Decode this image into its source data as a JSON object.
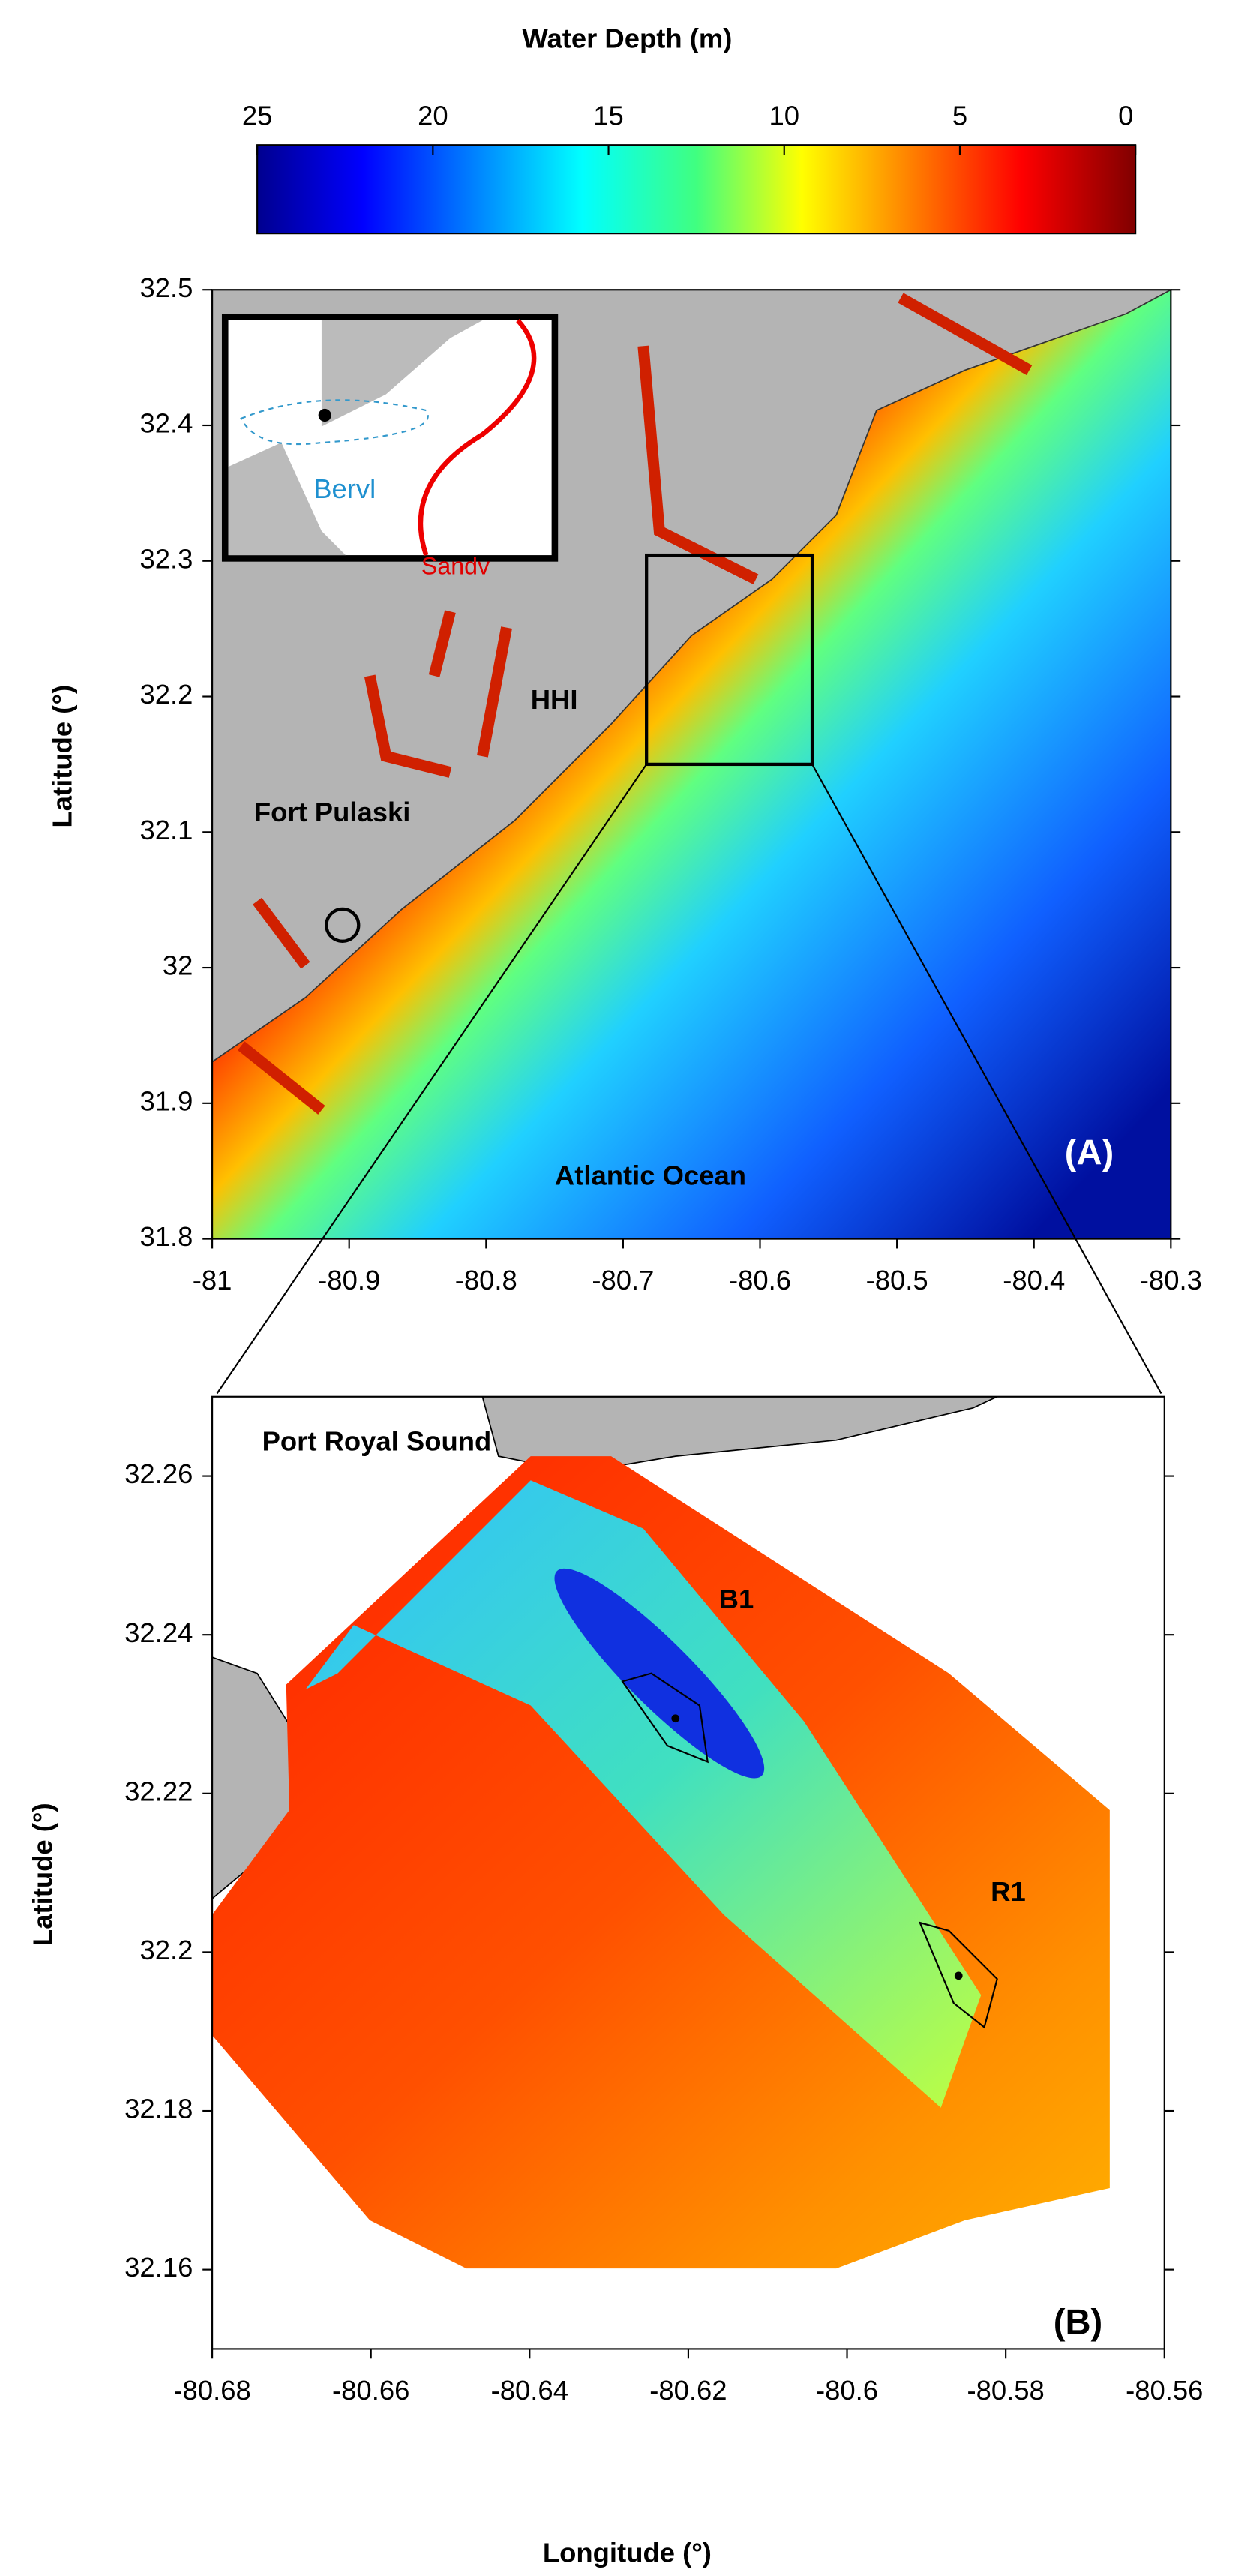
{
  "colorbar": {
    "title": "Water Depth (m)",
    "lim": [
      25,
      0
    ],
    "ticks": [
      25,
      20,
      15,
      10,
      5,
      0
    ]
  },
  "panel_a": {
    "xlim": [
      -81,
      -80.3
    ],
    "ylim": [
      31.8,
      32.5
    ],
    "xticks": [
      -81,
      -80.9,
      -80.8,
      -80.7,
      -80.6,
      -80.5,
      -80.4,
      -80.3
    ],
    "yticks": [
      31.8,
      31.9,
      32,
      32.1,
      32.2,
      32.3,
      32.4,
      32.5
    ],
    "ylabel": "Latitude (°)",
    "panel_label": "(A)",
    "labels": [
      "HHI",
      "Fort Pulaski",
      "Atlantic Ocean"
    ],
    "inset_labels": [
      "Bervl",
      "Sandv"
    ]
  },
  "panel_b": {
    "xlim": [
      -80.68,
      -80.56
    ],
    "ylim": [
      32.15,
      32.27
    ],
    "xticks": [
      -80.68,
      -80.66,
      -80.64,
      -80.62,
      -80.6,
      -80.58,
      -80.56
    ],
    "yticks": [
      32.16,
      32.18,
      32.2,
      32.22,
      32.24,
      32.26
    ],
    "ylabel": "Latitude (°)",
    "xlabel": "Longitude (°)",
    "panel_label": "(B)",
    "labels": [
      "Port Royal Sound",
      "B1",
      "R1"
    ]
  }
}
